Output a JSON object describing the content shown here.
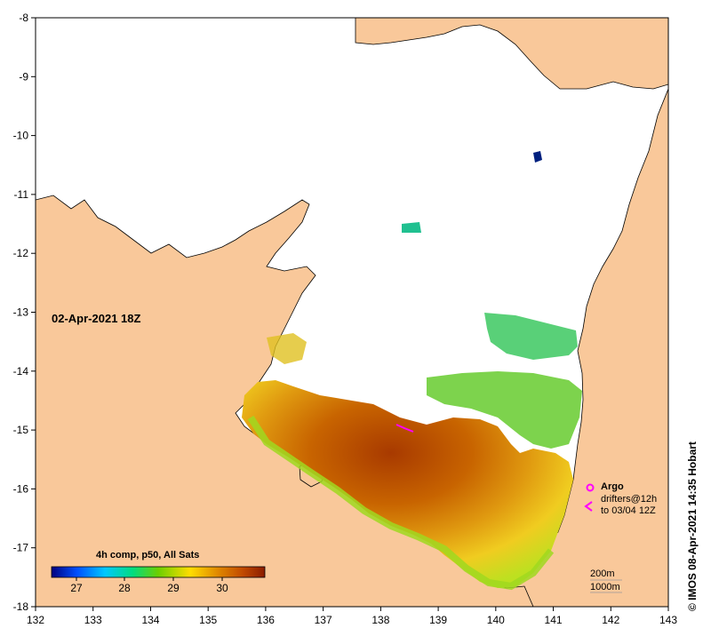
{
  "map": {
    "date_label": "02-Apr-2021 18Z",
    "colorbar_title": "4h comp, p50, All Sats",
    "colorbar_ticks": [
      "27",
      "28",
      "29",
      "30"
    ],
    "x_ticks": [
      "132",
      "133",
      "134",
      "135",
      "136",
      "137",
      "138",
      "139",
      "140",
      "141",
      "142",
      "143"
    ],
    "y_ticks": [
      "-8",
      "-9",
      "-10",
      "-11",
      "-12",
      "-13",
      "-14",
      "-15",
      "-16",
      "-17",
      "-18"
    ],
    "credit": "© IMOS 08-Apr-2021 14:35 Hobart",
    "legend": {
      "argo_label": "Argo",
      "drifters_label": "drifters@12h",
      "drifters_time": "to 03/04 12Z"
    },
    "isobaths": [
      "200m",
      "1000m"
    ],
    "colors": {
      "land": "#f9c89a",
      "sea_missing": "#ffffff",
      "argo": "#ff00ff",
      "colormap": [
        "#00007f",
        "#0050ff",
        "#00c8ff",
        "#00dc80",
        "#6ccf00",
        "#ffdd00",
        "#e08800",
        "#c04800",
        "#8a1c00"
      ]
    }
  }
}
